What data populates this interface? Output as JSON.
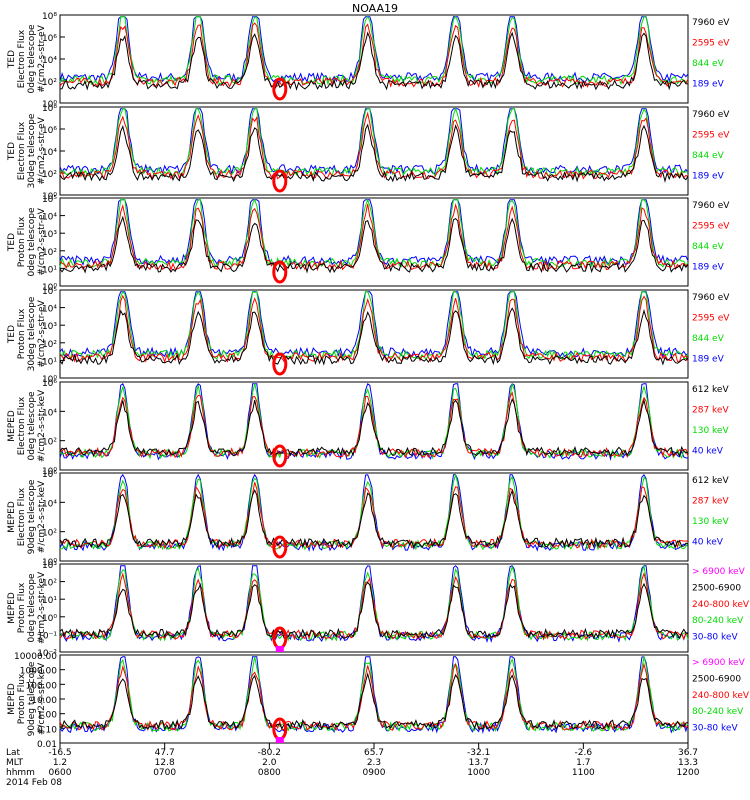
{
  "title": "NOAA19",
  "colors": {
    "black": "#000000",
    "red": "#ff0000",
    "green": "#00dd00",
    "blue": "#0000ff",
    "magenta": "#ff00ff"
  },
  "panels": [
    {
      "ylabel": [
        "TED",
        "Electron Flux",
        "0deg telescope",
        "#/cm2-s-str-eV"
      ],
      "yticks": [
        "10⁰",
        "10²",
        "10⁴",
        "10⁶",
        "10⁸"
      ],
      "legend": [
        {
          "label": "7960 eV",
          "color": "#000000"
        },
        {
          "label": "2595 eV",
          "color": "#ff0000"
        },
        {
          "label": "844 eV",
          "color": "#00dd00"
        },
        {
          "label": "189 eV",
          "color": "#0000ff"
        }
      ]
    },
    {
      "ylabel": [
        "TED",
        "Electron Flux",
        "30deg telescope",
        "#/cm2-s-str-eV"
      ],
      "yticks": [
        "10⁰",
        "10²",
        "10⁴",
        "10⁶",
        "10⁸"
      ],
      "legend": [
        {
          "label": "7960 eV",
          "color": "#000000"
        },
        {
          "label": "2595 eV",
          "color": "#ff0000"
        },
        {
          "label": "844 eV",
          "color": "#00dd00"
        },
        {
          "label": "189 eV",
          "color": "#0000ff"
        }
      ]
    },
    {
      "ylabel": [
        "TED",
        "Proton Flux",
        "0deg telescope",
        "#/cm2-s-str-eV"
      ],
      "yticks": [
        "10⁰",
        "10¹",
        "10²",
        "10³",
        "10⁴",
        "10⁵"
      ],
      "legend": [
        {
          "label": "7960 eV",
          "color": "#000000"
        },
        {
          "label": "2595 eV",
          "color": "#ff0000"
        },
        {
          "label": "844 eV",
          "color": "#00dd00"
        },
        {
          "label": "189 eV",
          "color": "#0000ff"
        }
      ]
    },
    {
      "ylabel": [
        "TED",
        "Proton Flux",
        "30deg telescope",
        "#/cm2-s-str-eV"
      ],
      "yticks": [
        "10⁰",
        "10¹",
        "10²",
        "10³",
        "10⁴",
        "10⁵"
      ],
      "legend": [
        {
          "label": "7960 eV",
          "color": "#000000"
        },
        {
          "label": "2595 eV",
          "color": "#ff0000"
        },
        {
          "label": "844 eV",
          "color": "#00dd00"
        },
        {
          "label": "189 eV",
          "color": "#0000ff"
        }
      ]
    },
    {
      "ylabel": [
        "MEPED",
        "Electron Flux",
        "0deg telescope",
        "#/cm2-s-str-keV"
      ],
      "yticks": [
        "10⁰",
        "10²",
        "10⁴",
        "10⁶"
      ],
      "legend": [
        {
          "label": "612 keV",
          "color": "#000000"
        },
        {
          "label": "287 keV",
          "color": "#ff0000"
        },
        {
          "label": "130 keV",
          "color": "#00dd00"
        },
        {
          "label": "40 keV",
          "color": "#0000ff"
        }
      ]
    },
    {
      "ylabel": [
        "MEPED",
        "Electron Flux",
        "90deg telescope",
        "#/cm2-s-str-keV"
      ],
      "yticks": [
        "10⁰",
        "10²",
        "10⁴",
        "10⁶"
      ],
      "legend": [
        {
          "label": "612 keV",
          "color": "#000000"
        },
        {
          "label": "287 keV",
          "color": "#ff0000"
        },
        {
          "label": "130 keV",
          "color": "#00dd00"
        },
        {
          "label": "40 keV",
          "color": "#0000ff"
        }
      ]
    },
    {
      "ylabel": [
        "MEPED",
        "Proton Flux",
        "0deg telescope",
        "#/cm2-s-str-keV"
      ],
      "yticks": [
        "10⁻²",
        "10⁻¹",
        "10⁰",
        "10¹",
        "10²",
        "10³"
      ],
      "legend": [
        {
          "label": "> 6900 keV",
          "color": "#ff00ff"
        },
        {
          "label": "2500-6900",
          "color": "#000000"
        },
        {
          "label": "240-800 keV",
          "color": "#ff0000"
        },
        {
          "label": "80-240 keV",
          "color": "#00dd00"
        },
        {
          "label": "30-80 keV",
          "color": "#0000ff"
        }
      ]
    },
    {
      "ylabel": [
        "MEPED",
        "Proton Flux",
        "90deg telescope",
        "#/cm2-s-str-keV"
      ],
      "yticks": [
        "0.01",
        "0.10",
        "1.00",
        "10.00",
        "100.00",
        "1000.00",
        "10000.00"
      ],
      "legend": [
        {
          "label": "> 6900 keV",
          "color": "#ff00ff"
        },
        {
          "label": "2500-6900",
          "color": "#000000"
        },
        {
          "label": "240-800 keV",
          "color": "#ff0000"
        },
        {
          "label": "80-240 keV",
          "color": "#00dd00"
        },
        {
          "label": "30-80 keV",
          "color": "#0000ff"
        }
      ]
    }
  ],
  "xaxis": {
    "row_labels": [
      "Lat",
      "MLT",
      "hhmm"
    ],
    "date": "2014 Feb 08",
    "ticks": [
      {
        "lat": "-16.5",
        "mlt": "1.2",
        "hhmm": "0600"
      },
      {
        "lat": "47.7",
        "mlt": "12.8",
        "hhmm": "0700"
      },
      {
        "lat": "-80.2",
        "mlt": "2.0",
        "hhmm": "0800"
      },
      {
        "lat": "65.7",
        "mlt": "2.3",
        "hhmm": "0900"
      },
      {
        "lat": "-32.1",
        "mlt": "13.7",
        "hhmm": "1000"
      },
      {
        "lat": "-2.6",
        "mlt": "1.7",
        "hhmm": "1100"
      },
      {
        "lat": "36.7",
        "mlt": "13.3",
        "hhmm": "1200"
      }
    ]
  },
  "chart_data": {
    "type": "line",
    "title": "NOAA19",
    "x_time_range": [
      "0600",
      "1200"
    ],
    "pass_peaks_hhmm": [
      "0630",
      "0708",
      "0736",
      "0842",
      "0936",
      "1012",
      "1130"
    ],
    "notes": "8 stacked log-scale flux panels vs UT time"
  }
}
